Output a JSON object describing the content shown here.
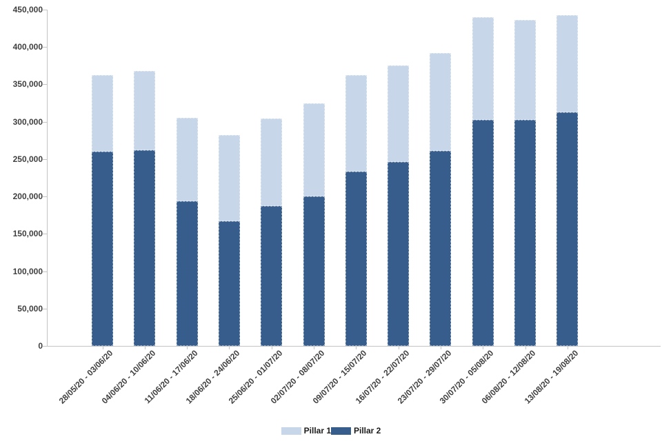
{
  "chart_data": {
    "type": "bar",
    "stacked": true,
    "title": "",
    "xlabel": "",
    "ylabel": "",
    "grid": false,
    "legend_position": "bottom",
    "ylim": [
      0,
      450000
    ],
    "ytick_step": 50000,
    "ytick_labels": [
      "0",
      "50,000",
      "100,000",
      "150,000",
      "200,000",
      "250,000",
      "300,000",
      "350,000",
      "400,000",
      "450,000"
    ],
    "categories": [
      "28/05/20 - 03/06/20",
      "04/06/20 - 10/06/20",
      "11/06/20 - 17/06/20",
      "18/06/20 - 24/06/20",
      "25/06/20 - 01/07/20",
      "02/07/20 - 08/07/20",
      "09/07/20 - 15/07/20",
      "16/07/20 - 22/07/20",
      "23/07/20 - 29/07/20",
      "30/07/20 - 05/08/20",
      "06/08/20 - 12/08/20",
      "13/08/20 - 19/08/20"
    ],
    "series": [
      {
        "name": "Pillar 1",
        "color": "#c8d6e9",
        "values": [
          102000,
          106000,
          111000,
          115000,
          117000,
          125000,
          129000,
          129000,
          131000,
          138000,
          134000,
          130000
        ]
      },
      {
        "name": "Pillar 2",
        "color": "#365d8c",
        "values": [
          260000,
          262000,
          194000,
          167000,
          187000,
          200000,
          233000,
          246000,
          261000,
          302000,
          302000,
          313000
        ]
      }
    ],
    "stack_bottom_to_top": [
      "Pillar 2",
      "Pillar 1"
    ],
    "stacked_totals": [
      362000,
      368000,
      305000,
      282000,
      304000,
      325000,
      362000,
      375000,
      392000,
      440000,
      436000,
      443000
    ]
  },
  "axis_colors": {
    "line": "#c3c3c3",
    "tick_text": "#3f3f3f",
    "legend_text": "#1a1a1a"
  }
}
